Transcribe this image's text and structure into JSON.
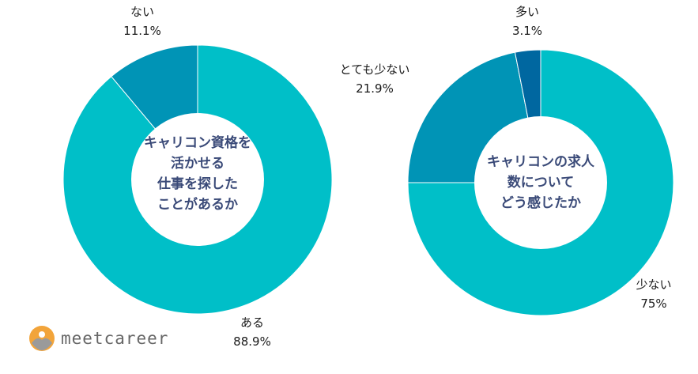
{
  "brand": {
    "name": "meetcareer",
    "logo_colors": {
      "orange": "#f2a43a",
      "gray": "#9a9a9a"
    }
  },
  "colors": {
    "primary": "#00bfc8",
    "secondary": "#0094b6",
    "tertiary": "#0067a0",
    "center_text": "#3a4a78",
    "label_text": "#1a1a1a"
  },
  "chart_data": [
    {
      "type": "donut",
      "center_label": [
        "キャリコン資格を",
        "活かせる",
        "仕事を探した",
        "ことがあるか"
      ],
      "slices": [
        {
          "label": "ある",
          "value": 88.9,
          "display": "88.9%",
          "color": "#00bfc8"
        },
        {
          "label": "ない",
          "value": 11.1,
          "display": "11.1%",
          "color": "#0094b6"
        }
      ]
    },
    {
      "type": "donut",
      "center_label": [
        "キャリコンの求人",
        "数について",
        "どう感じたか"
      ],
      "slices": [
        {
          "label": "少ない",
          "value": 75,
          "display": "75%",
          "color": "#00bfc8"
        },
        {
          "label": "とても少ない",
          "value": 21.9,
          "display": "21.9%",
          "color": "#0094b6"
        },
        {
          "label": "多い",
          "value": 3.1,
          "display": "3.1%",
          "color": "#0067a0"
        }
      ]
    }
  ]
}
